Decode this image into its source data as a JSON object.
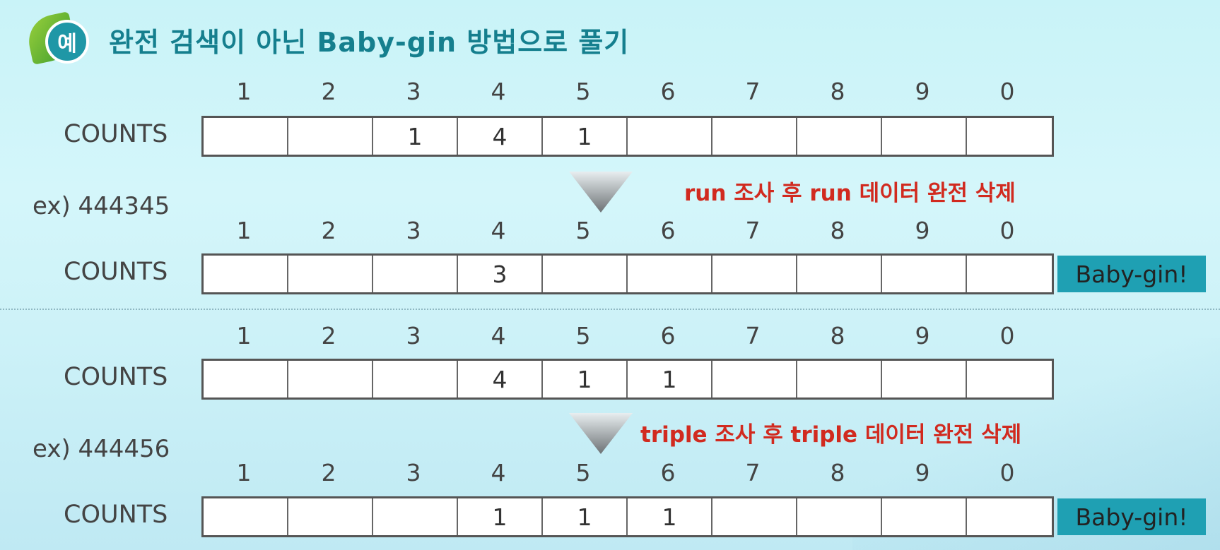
{
  "header": {
    "badge": "예",
    "title": "완전 검색이 아닌 Baby-gin 방법으로 풀기"
  },
  "digits": [
    "1",
    "2",
    "3",
    "4",
    "5",
    "6",
    "7",
    "8",
    "9",
    "0"
  ],
  "row_label": "COUNTS",
  "section1": {
    "example": "ex) 444345",
    "counts_before": [
      "",
      "",
      "1",
      "4",
      "1",
      "",
      "",
      "",
      "",
      ""
    ],
    "note": "run 조사 후 run 데이터 완전 삭제",
    "counts_after": [
      "",
      "",
      "",
      "3",
      "",
      "",
      "",
      "",
      "",
      ""
    ],
    "result": "Baby-gin!"
  },
  "section2": {
    "example": "ex) 444456",
    "counts_before": [
      "",
      "",
      "",
      "4",
      "1",
      "1",
      "",
      "",
      "",
      ""
    ],
    "note": "triple 조사 후 triple 데이터 완전 삭제",
    "counts_after": [
      "",
      "",
      "",
      "1",
      "1",
      "1",
      "",
      "",
      "",
      ""
    ],
    "result": "Baby-gin!"
  }
}
